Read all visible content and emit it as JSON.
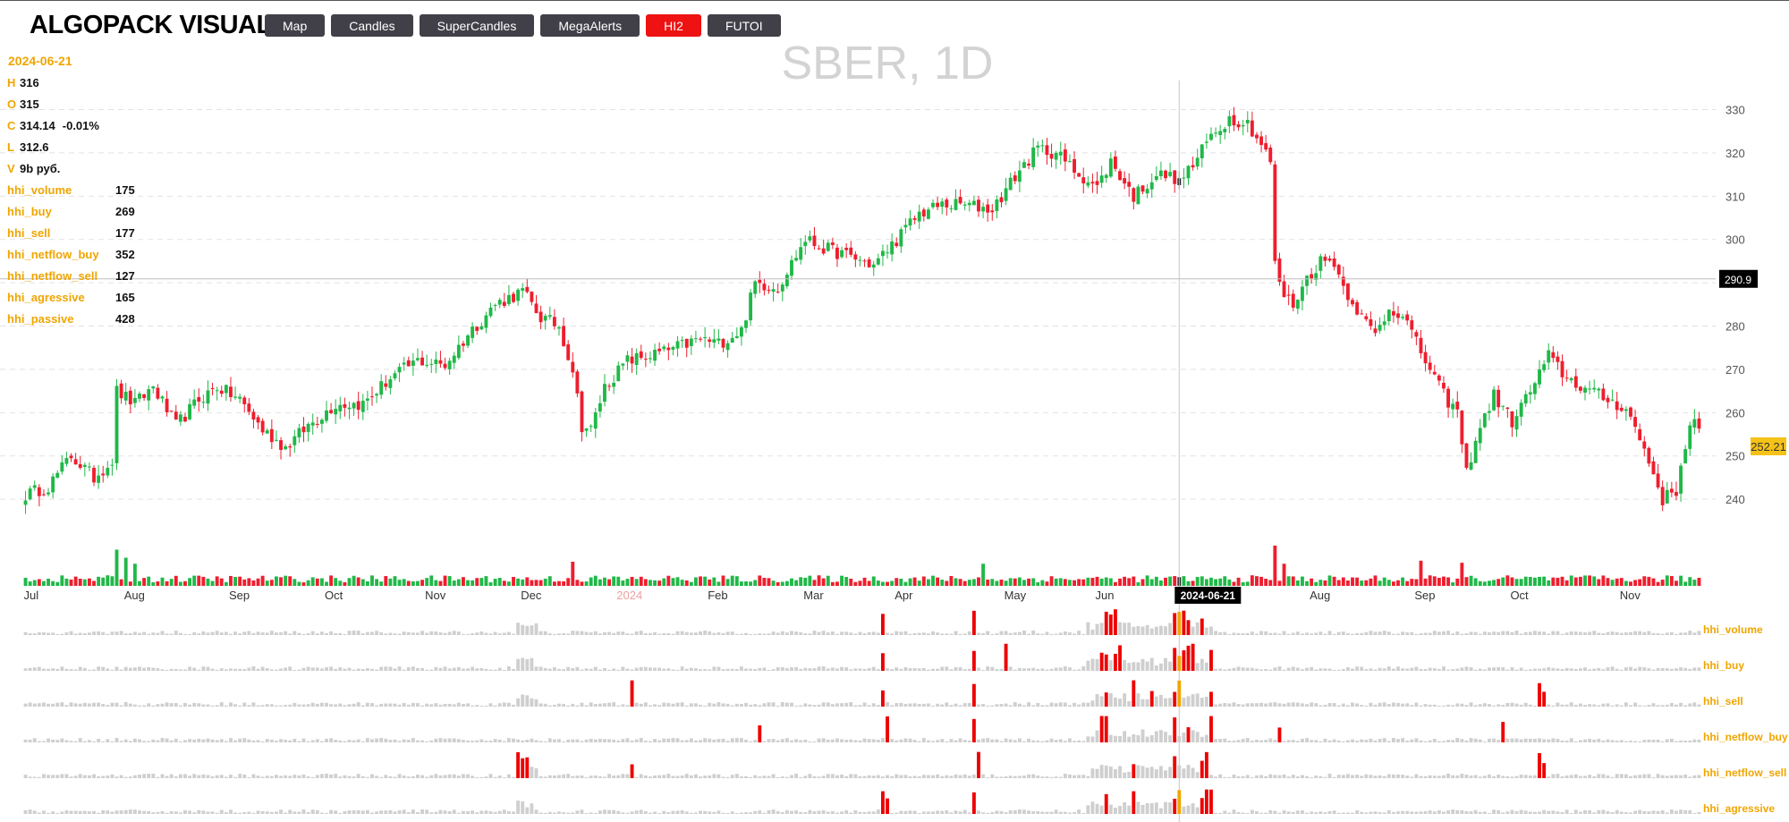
{
  "app": {
    "title": "ALGOPACK VISUAL"
  },
  "nav": {
    "items": [
      {
        "label": "Map",
        "active": false
      },
      {
        "label": "Candles",
        "active": false
      },
      {
        "label": "SuperCandles",
        "active": false
      },
      {
        "label": "MegaAlerts",
        "active": false
      },
      {
        "label": "HI2",
        "active": true
      },
      {
        "label": "FUTOI",
        "active": false
      }
    ]
  },
  "legend": {
    "date": "2024-06-21",
    "ohlcv": [
      {
        "key": "H",
        "value": "316"
      },
      {
        "key": "O",
        "value": "315"
      },
      {
        "key": "C",
        "value": "314.14",
        "change": "-0.01%"
      },
      {
        "key": "L",
        "value": "312.6"
      },
      {
        "key": "V",
        "value": "9b руб."
      }
    ],
    "hhi": [
      {
        "key": "hhi_volume",
        "value": "175"
      },
      {
        "key": "hhi_buy",
        "value": "269"
      },
      {
        "key": "hhi_sell",
        "value": "177"
      },
      {
        "key": "hhi_netflow_buy",
        "value": "352"
      },
      {
        "key": "hhi_netflow_sell",
        "value": "127"
      },
      {
        "key": "hhi_agressive",
        "value": "165"
      },
      {
        "key": "hhi_passive",
        "value": "428"
      }
    ]
  },
  "colors": {
    "up": "#20b848",
    "down": "#ee1e2e",
    "accent": "#f0a500",
    "hist": "#cfcfcf",
    "alert": "#ee0000",
    "crosshair": "#000000"
  },
  "chart_data": {
    "type": "candlestick",
    "title": "SBER, 1D",
    "ylim": [
      233,
      333
    ],
    "y_ticks": [
      240,
      250,
      260,
      270,
      280,
      290,
      300,
      310,
      320,
      330
    ],
    "month_labels": [
      {
        "label": "Jul",
        "idx": 0
      },
      {
        "label": "Aug",
        "idx": 22
      },
      {
        "label": "Sep",
        "idx": 45
      },
      {
        "label": "Oct",
        "idx": 66
      },
      {
        "label": "Nov",
        "idx": 88
      },
      {
        "label": "Dec",
        "idx": 109
      },
      {
        "label": "2024",
        "idx": 130,
        "year": true
      },
      {
        "label": "Feb",
        "idx": 150
      },
      {
        "label": "Mar",
        "idx": 171
      },
      {
        "label": "Apr",
        "idx": 191
      },
      {
        "label": "May",
        "idx": 215
      },
      {
        "label": "Jun",
        "idx": 235
      },
      {
        "label": "Aug",
        "idx": 282
      },
      {
        "label": "Sep",
        "idx": 305
      },
      {
        "label": "Oct",
        "idx": 326
      },
      {
        "label": "Nov",
        "idx": 350
      }
    ],
    "num_bars": 368,
    "crosshair": {
      "idx": 253,
      "date": "2024-06-21",
      "price": "290.9",
      "price_value": 290.9
    },
    "last_price": {
      "label": "252.21",
      "value": 252.21
    },
    "close_path": [
      [
        0,
        241
      ],
      [
        5,
        243
      ],
      [
        10,
        250
      ],
      [
        15,
        245
      ],
      [
        19,
        249
      ],
      [
        20,
        265
      ],
      [
        24,
        262
      ],
      [
        28,
        266
      ],
      [
        33,
        257
      ],
      [
        38,
        263
      ],
      [
        42,
        266
      ],
      [
        47,
        263
      ],
      [
        52,
        256
      ],
      [
        57,
        252
      ],
      [
        62,
        257
      ],
      [
        68,
        262
      ],
      [
        74,
        262
      ],
      [
        80,
        268
      ],
      [
        86,
        272
      ],
      [
        92,
        271
      ],
      [
        97,
        278
      ],
      [
        103,
        285
      ],
      [
        109,
        288
      ],
      [
        113,
        282
      ],
      [
        117,
        280
      ],
      [
        120,
        270
      ],
      [
        122,
        257
      ],
      [
        124,
        256
      ],
      [
        127,
        266
      ],
      [
        132,
        272
      ],
      [
        140,
        274
      ],
      [
        148,
        277
      ],
      [
        152,
        276
      ],
      [
        157,
        279
      ],
      [
        160,
        290
      ],
      [
        165,
        289
      ],
      [
        171,
        300
      ],
      [
        175,
        298
      ],
      [
        181,
        296
      ],
      [
        186,
        294
      ],
      [
        191,
        300
      ],
      [
        196,
        306
      ],
      [
        201,
        308
      ],
      [
        206,
        308
      ],
      [
        212,
        307
      ],
      [
        218,
        316
      ],
      [
        222,
        321
      ],
      [
        226,
        320
      ],
      [
        230,
        316
      ],
      [
        235,
        312
      ],
      [
        238,
        318
      ],
      [
        243,
        310
      ],
      [
        248,
        315
      ],
      [
        253,
        314.14
      ],
      [
        256,
        317
      ],
      [
        260,
        324
      ],
      [
        264,
        328
      ],
      [
        268,
        327
      ],
      [
        271,
        322
      ],
      [
        273,
        318
      ],
      [
        274,
        294
      ],
      [
        276,
        287
      ],
      [
        278,
        285
      ],
      [
        281,
        291
      ],
      [
        284,
        295
      ],
      [
        287,
        295
      ],
      [
        289,
        289
      ],
      [
        291,
        286
      ],
      [
        293,
        282
      ],
      [
        296,
        278
      ],
      [
        299,
        284
      ],
      [
        302,
        283
      ],
      [
        305,
        276
      ],
      [
        308,
        270
      ],
      [
        311,
        264
      ],
      [
        314,
        260
      ],
      [
        316,
        246
      ],
      [
        318,
        254
      ],
      [
        322,
        264
      ],
      [
        326,
        258
      ],
      [
        330,
        265
      ],
      [
        334,
        273
      ],
      [
        338,
        268
      ],
      [
        343,
        265
      ],
      [
        347,
        263
      ],
      [
        351,
        261
      ],
      [
        354,
        254
      ],
      [
        357,
        246
      ],
      [
        359,
        240
      ],
      [
        362,
        242
      ],
      [
        364,
        253
      ],
      [
        366,
        259
      ],
      [
        368,
        252.21
      ]
    ],
    "volume": {
      "spikes": [
        {
          "idx": 20,
          "value": 3.6
        },
        {
          "idx": 22,
          "value": 2.8
        },
        {
          "idx": 24,
          "value": 2.2
        },
        {
          "idx": 120,
          "value": 2.4
        },
        {
          "idx": 210,
          "value": 2.2
        },
        {
          "idx": 274,
          "value": 4.0
        },
        {
          "idx": 276,
          "value": 2.2
        },
        {
          "idx": 306,
          "value": 2.5
        },
        {
          "idx": 315,
          "value": 2.3
        }
      ],
      "base": 1.0
    },
    "hhi_panels": [
      {
        "name": "hhi_volume",
        "alerts": [
          188,
          208,
          237,
          238,
          239,
          252,
          253,
          254,
          255,
          258
        ],
        "gray_bumps": [
          108,
          109,
          110,
          111,
          112,
          233,
          234,
          235,
          236,
          240,
          241,
          242,
          243,
          244,
          245,
          246,
          247,
          248,
          249,
          250,
          251,
          256,
          257,
          259,
          260
        ]
      },
      {
        "name": "hhi_buy",
        "alerts": [
          188,
          208,
          215,
          236,
          237,
          239,
          240,
          252,
          253,
          254,
          255,
          256,
          260
        ],
        "gray_bumps": [
          108,
          109,
          110,
          111,
          233,
          234,
          235,
          238,
          241,
          242,
          243,
          244,
          245,
          246,
          247,
          248,
          249,
          250,
          251,
          257,
          258,
          259
        ]
      },
      {
        "name": "hhi_sell",
        "alerts": [
          133,
          188,
          208,
          237,
          243,
          247,
          252,
          253,
          260,
          332,
          333
        ],
        "gray_bumps": [
          108,
          109,
          110,
          111,
          112,
          234,
          235,
          236,
          238,
          239,
          240,
          241,
          242,
          244,
          245,
          246,
          248,
          249,
          250,
          251,
          254,
          255,
          256,
          257,
          258,
          259
        ]
      },
      {
        "name": "hhi_netflow_buy",
        "alerts": [
          161,
          189,
          208,
          236,
          237,
          252,
          255,
          260,
          275,
          324
        ],
        "gray_bumps": [
          233,
          234,
          235,
          238,
          239,
          240,
          241,
          242,
          243,
          244,
          245,
          246,
          247,
          248,
          249,
          250,
          251,
          253,
          254,
          256,
          257,
          258,
          259
        ]
      },
      {
        "name": "hhi_netflow_sell",
        "alerts": [
          108,
          109,
          110,
          133,
          209,
          243,
          252,
          258,
          259,
          332,
          333
        ],
        "gray_bumps": [
          111,
          112,
          234,
          235,
          236,
          237,
          238,
          239,
          240,
          241,
          242,
          244,
          245,
          246,
          247,
          248,
          249,
          250,
          251,
          253,
          254,
          255,
          256,
          257
        ]
      },
      {
        "name": "hhi_agressive",
        "alerts": [
          188,
          189,
          208,
          237,
          243,
          252,
          253,
          258,
          259,
          260
        ],
        "gray_bumps": [
          108,
          109,
          110,
          111,
          233,
          234,
          235,
          236,
          238,
          239,
          240,
          241,
          242,
          244,
          245,
          246,
          247,
          248,
          249,
          250,
          251,
          254,
          255,
          256,
          257
        ]
      }
    ]
  }
}
